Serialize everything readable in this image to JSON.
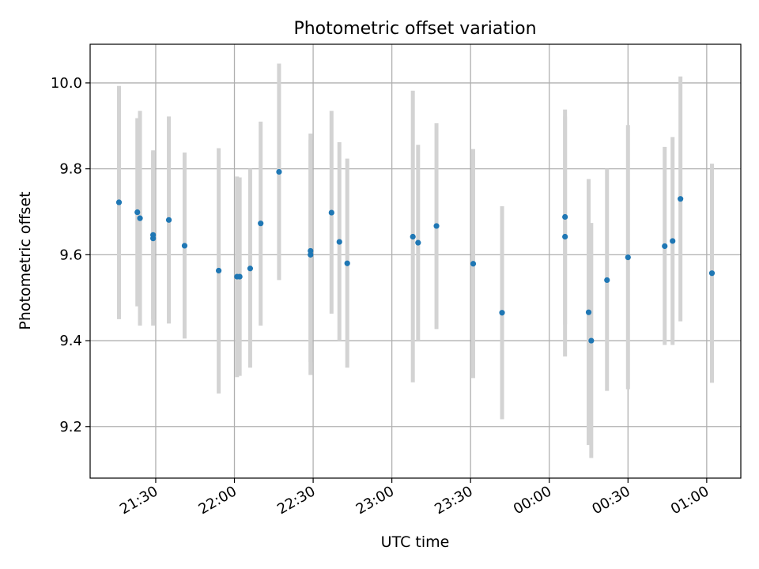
{
  "chart_data": {
    "type": "scatter",
    "title": "Photometric offset variation",
    "xlabel": "UTC time",
    "ylabel": "Photometric offset",
    "x_type": "time",
    "xlim": [
      "21:05",
      "01:13"
    ],
    "ylim": [
      9.08,
      10.09
    ],
    "x_ticks": [
      "21:30",
      "22:00",
      "22:30",
      "23:00",
      "23:30",
      "00:00",
      "00:30",
      "01:00"
    ],
    "y_ticks": [
      9.2,
      9.4,
      9.6,
      9.8,
      10.0
    ],
    "y_tick_labels": [
      "9.2",
      "9.4",
      "9.6",
      "9.8",
      "10.0"
    ],
    "grid": true,
    "legend": "none",
    "colors": {
      "points": "#1f77b4",
      "error_bars": "#d3d3d3",
      "grid": "#b0b0b0"
    },
    "points": [
      {
        "x": "21:16",
        "y": 9.722,
        "y_low": 9.45,
        "y_high": 9.993
      },
      {
        "x": "21:23",
        "y": 9.699,
        "y_low": 9.48,
        "y_high": 9.918
      },
      {
        "x": "21:24",
        "y": 9.685,
        "y_low": 9.435,
        "y_high": 9.935
      },
      {
        "x": "21:29",
        "y": 9.638,
        "y_low": 9.435,
        "y_high": 9.84
      },
      {
        "x": "21:29",
        "y": 9.646,
        "y_low": 9.45,
        "y_high": 9.843
      },
      {
        "x": "21:35",
        "y": 9.681,
        "y_low": 9.44,
        "y_high": 9.922
      },
      {
        "x": "21:41",
        "y": 9.621,
        "y_low": 9.405,
        "y_high": 9.838
      },
      {
        "x": "21:54",
        "y": 9.563,
        "y_low": 9.277,
        "y_high": 9.848
      },
      {
        "x": "22:01",
        "y": 9.549,
        "y_low": 9.315,
        "y_high": 9.782
      },
      {
        "x": "22:02",
        "y": 9.549,
        "y_low": 9.318,
        "y_high": 9.78
      },
      {
        "x": "22:06",
        "y": 9.568,
        "y_low": 9.337,
        "y_high": 9.8
      },
      {
        "x": "22:10",
        "y": 9.673,
        "y_low": 9.435,
        "y_high": 9.91
      },
      {
        "x": "22:17",
        "y": 9.793,
        "y_low": 9.541,
        "y_high": 10.045
      },
      {
        "x": "22:29",
        "y": 9.6,
        "y_low": 9.32,
        "y_high": 9.882
      },
      {
        "x": "22:29",
        "y": 9.609,
        "y_low": 9.35,
        "y_high": 9.868
      },
      {
        "x": "22:37",
        "y": 9.698,
        "y_low": 9.463,
        "y_high": 9.935
      },
      {
        "x": "22:40",
        "y": 9.63,
        "y_low": 9.4,
        "y_high": 9.862
      },
      {
        "x": "22:43",
        "y": 9.58,
        "y_low": 9.337,
        "y_high": 9.824
      },
      {
        "x": "23:08",
        "y": 9.642,
        "y_low": 9.303,
        "y_high": 9.982
      },
      {
        "x": "23:10",
        "y": 9.628,
        "y_low": 9.4,
        "y_high": 9.856
      },
      {
        "x": "23:17",
        "y": 9.667,
        "y_low": 9.427,
        "y_high": 9.906
      },
      {
        "x": "23:31",
        "y": 9.579,
        "y_low": 9.313,
        "y_high": 9.846
      },
      {
        "x": "23:42",
        "y": 9.465,
        "y_low": 9.217,
        "y_high": 9.713
      },
      {
        "x": "00:06",
        "y": 9.642,
        "y_low": 9.363,
        "y_high": 9.922
      },
      {
        "x": "00:06",
        "y": 9.688,
        "y_low": 9.438,
        "y_high": 9.938
      },
      {
        "x": "00:15",
        "y": 9.466,
        "y_low": 9.157,
        "y_high": 9.776
      },
      {
        "x": "00:16",
        "y": 9.4,
        "y_low": 9.127,
        "y_high": 9.674
      },
      {
        "x": "00:22",
        "y": 9.541,
        "y_low": 9.283,
        "y_high": 9.8
      },
      {
        "x": "00:30",
        "y": 9.594,
        "y_low": 9.287,
        "y_high": 9.902
      },
      {
        "x": "00:44",
        "y": 9.62,
        "y_low": 9.39,
        "y_high": 9.851
      },
      {
        "x": "00:47",
        "y": 9.632,
        "y_low": 9.39,
        "y_high": 9.874
      },
      {
        "x": "00:50",
        "y": 9.73,
        "y_low": 9.445,
        "y_high": 10.015
      },
      {
        "x": "01:02",
        "y": 9.557,
        "y_low": 9.302,
        "y_high": 9.812
      }
    ]
  }
}
